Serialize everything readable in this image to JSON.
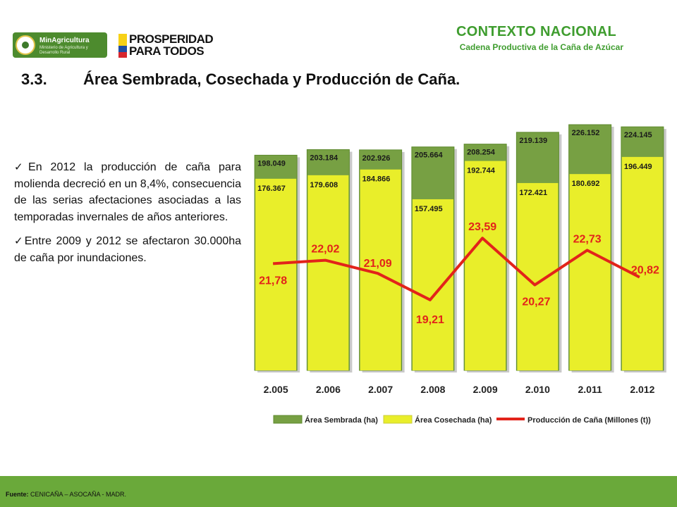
{
  "header": {
    "logo_ministry_name": "MinAgricultura",
    "logo_ministry_sub": "Ministerio de Agricultura y Desarrollo Rural",
    "logo_pros_line1": "PROSPERIDAD",
    "logo_pros_line2": "PARA TODOS",
    "context_title": "CONTEXTO NACIONAL",
    "context_subtitle": "Cadena Productiva de la Caña de Azúcar"
  },
  "slide": {
    "title_number": "3.3.",
    "title_text": "Área Sembrada, Cosechada y Producción de Caña.",
    "bullets": [
      "En 2012 la producción de caña para molienda decreció en un 8,4%, consecuencia de las serias afectaciones asociadas a las temporadas invernales de años anteriores.",
      "Entre 2009 y 2012 se afectaron 30.000ha de caña por inundaciones."
    ]
  },
  "footer": {
    "source_label": "Fuente:",
    "source_text": " CENICAÑA – ASOCAÑA - MADR."
  },
  "colors": {
    "brand_green": "#3f9d2f",
    "footer_green": "#6aa93a",
    "sembrada": "#77a043",
    "cosechada": "#e9ee2a",
    "produccion": "#e2231a"
  },
  "chart_data": {
    "type": "bar",
    "title": "",
    "categories": [
      "2.005",
      "2.006",
      "2.007",
      "2.008",
      "2.009",
      "2.010",
      "2.011",
      "2.012"
    ],
    "series": [
      {
        "name": "Área Sembrada (ha)",
        "values": [
          198049,
          203184,
          202926,
          205664,
          208254,
          219139,
          226152,
          224145
        ],
        "labels": [
          "198.049",
          "203.184",
          "202.926",
          "205.664",
          "208.254",
          "219.139",
          "226.152",
          "224.145"
        ]
      },
      {
        "name": "Área Cosechada (ha)",
        "values": [
          176367,
          179608,
          184866,
          157495,
          192744,
          172421,
          180692,
          196449
        ],
        "labels": [
          "176.367",
          "179.608",
          "184.866",
          "157.495",
          "192.744",
          "172.421",
          "180.692",
          "196.449"
        ]
      },
      {
        "name": "Producción de Caña (Millones (t))",
        "type": "line",
        "values": [
          21.78,
          22.02,
          21.09,
          19.21,
          23.59,
          20.27,
          22.73,
          20.82
        ],
        "labels": [
          "21,78",
          "22,02",
          "21,09",
          "19,21",
          "23,59",
          "20,27",
          "22,73",
          "20,82"
        ]
      }
    ],
    "legend": "bottom",
    "grid": false
  }
}
